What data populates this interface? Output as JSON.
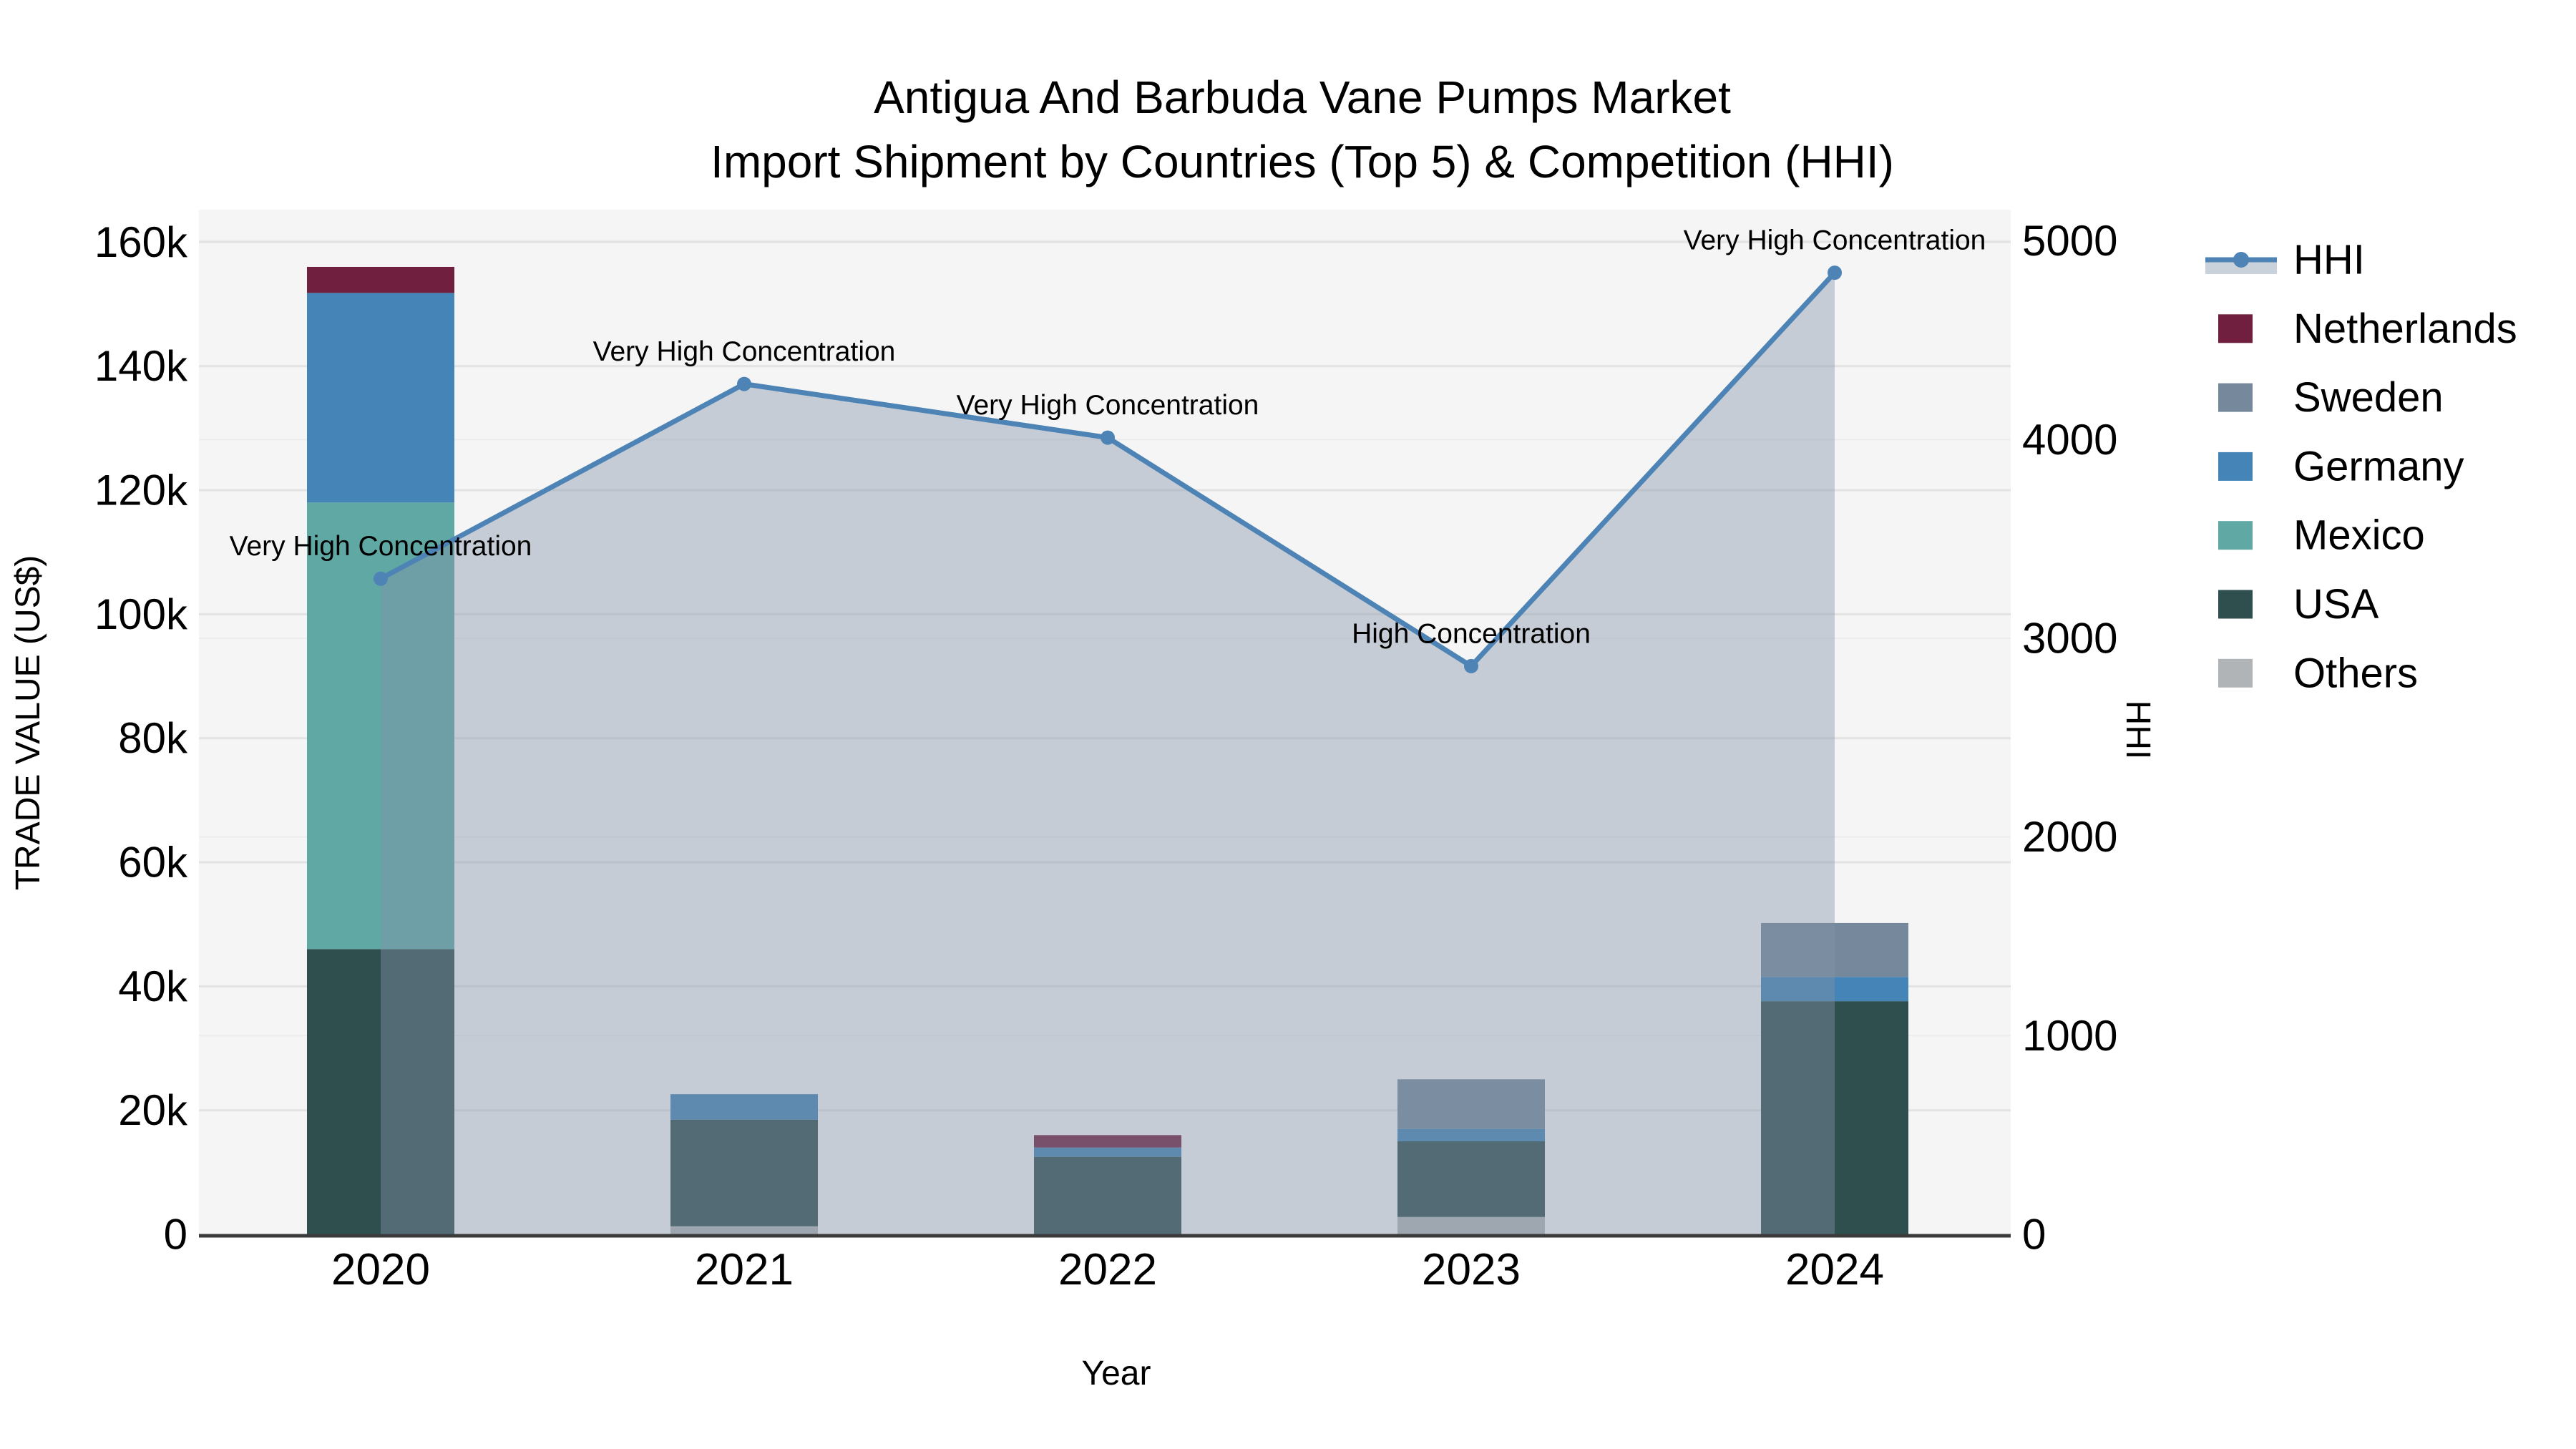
{
  "title": {
    "line1": "Antigua And Barbuda Vane Pumps Market",
    "line2": "Import Shipment by Countries (Top 5) & Competition (HHI)"
  },
  "axes": {
    "x_label": "Year",
    "y_left_label": "TRADE VALUE (US$)",
    "y_right_label": "HHI",
    "y_left_ticks": [
      "0",
      "20k",
      "40k",
      "60k",
      "80k",
      "100k",
      "120k",
      "140k",
      "160k"
    ],
    "y_right_ticks": [
      "0",
      "1000",
      "2000",
      "3000",
      "4000",
      "5000"
    ]
  },
  "legend": [
    {
      "label": "HHI",
      "type": "line",
      "color": "#4d84b5"
    },
    {
      "label": "Netherlands",
      "type": "box",
      "color": "#701f3e"
    },
    {
      "label": "Sweden",
      "type": "box",
      "color": "#76889b"
    },
    {
      "label": "Germany",
      "type": "box",
      "color": "#4484b6"
    },
    {
      "label": "Mexico",
      "type": "box",
      "color": "#5fa8a4"
    },
    {
      "label": "USA",
      "type": "box",
      "color": "#2f4f4f"
    },
    {
      "label": "Others",
      "type": "box",
      "color": "#b1b4b6"
    }
  ],
  "chart_data": {
    "type": "bar",
    "subtype": "stacked-bars-with-line",
    "categories": [
      "2020",
      "2021",
      "2022",
      "2023",
      "2024"
    ],
    "stack_order_bottom_to_top": [
      "Others",
      "USA",
      "Mexico",
      "Germany",
      "Sweden",
      "Netherlands"
    ],
    "series": [
      {
        "name": "Others",
        "values": [
          0,
          1300,
          0,
          2800,
          0
        ]
      },
      {
        "name": "USA",
        "values": [
          46000,
          17200,
          12500,
          12200,
          37600
        ]
      },
      {
        "name": "Mexico",
        "values": [
          72000,
          0,
          0,
          0,
          0
        ]
      },
      {
        "name": "Germany",
        "values": [
          33800,
          4100,
          1500,
          2000,
          3900
        ]
      },
      {
        "name": "Sweden",
        "values": [
          0,
          0,
          0,
          8000,
          8700
        ]
      },
      {
        "name": "Netherlands",
        "values": [
          4200,
          0,
          2000,
          0,
          0
        ]
      }
    ],
    "line_series": {
      "name": "HHI",
      "axis": "right",
      "values": [
        3300,
        4280,
        4010,
        2860,
        4840
      ]
    },
    "annotations": [
      "Very High Concentration",
      "Very High Concentration",
      "Very High Concentration",
      "High Concentration",
      "Very High Concentration"
    ],
    "title": "Antigua And Barbuda Vane Pumps Market — Import Shipment by Countries (Top 5) & Competition (HHI)",
    "xlabel": "Year",
    "ylabel_left": "TRADE VALUE (US$)",
    "ylabel_right": "HHI",
    "y_left_range": [
      0,
      160000
    ],
    "y_right_range": [
      0,
      5000
    ],
    "grid": true,
    "legend_position": "right"
  },
  "colors": {
    "hhi_line": "#4d84b5",
    "hhi_fill": "rgba(130,148,170,0.42)",
    "hhi_legend_fill": "#c9d1db",
    "plot_bg": "#f5f5f5",
    "grid_left": "#e3e3e3",
    "grid_right": "#ececec",
    "axis_line": "#3b3b3b",
    "text": "#000000",
    "annotation_text": "#111111"
  }
}
